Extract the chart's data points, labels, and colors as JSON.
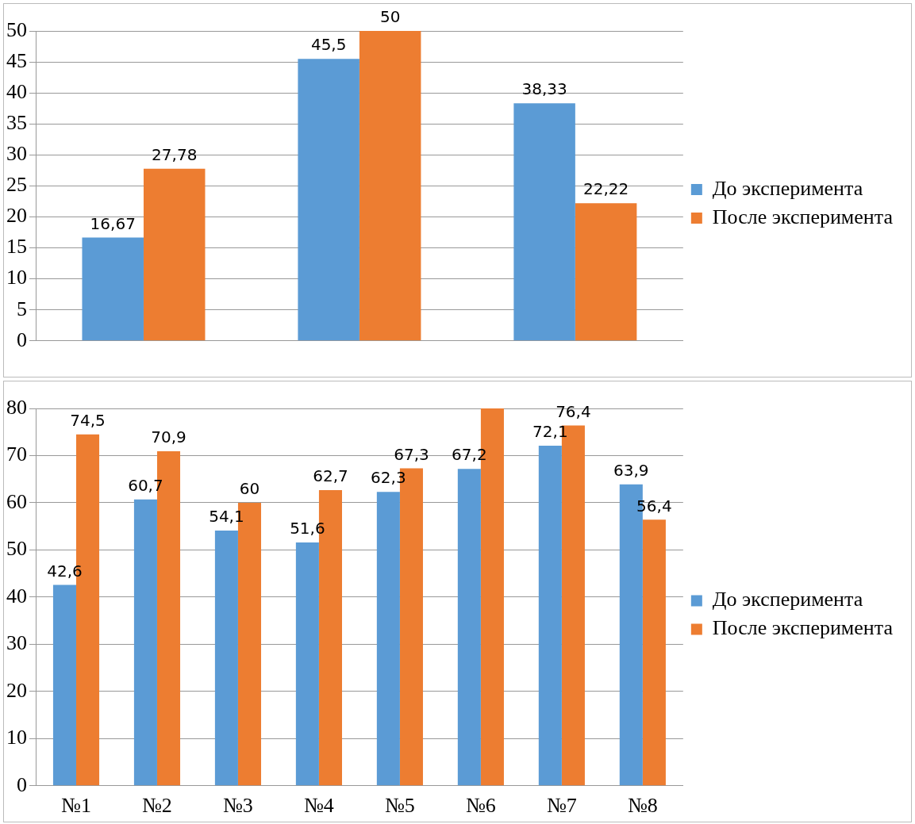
{
  "chart_data": [
    {
      "type": "bar",
      "categories": [
        null,
        null,
        null
      ],
      "series": [
        {
          "name": "До эксперимента",
          "color": "#5b9bd5",
          "values": [
            16.67,
            45.5,
            38.33
          ],
          "value_labels": [
            "16,67",
            "45,5",
            "38,33"
          ]
        },
        {
          "name": "После эксперимента",
          "color": "#ed7d31",
          "values": [
            27.78,
            50,
            22.22
          ],
          "value_labels": [
            "27,78",
            "50",
            "22,22"
          ]
        }
      ],
      "ylim": [
        0,
        50
      ],
      "yticks": [
        0,
        5,
        10,
        15,
        20,
        25,
        30,
        35,
        40,
        45,
        50
      ],
      "grid": "y",
      "legend": "right"
    },
    {
      "type": "bar",
      "categories": [
        "№1",
        "№2",
        "№3",
        "№4",
        "№5",
        "№6",
        "№7",
        "№8"
      ],
      "series": [
        {
          "name": "До эксперимента",
          "color": "#5b9bd5",
          "values": [
            42.6,
            60.7,
            54.1,
            51.6,
            62.3,
            67.2,
            72.1,
            63.9
          ],
          "value_labels": [
            "42,6",
            "60,7",
            "54,1",
            "51,6",
            "62,3",
            "67,2",
            "72,1",
            "63,9"
          ]
        },
        {
          "name": "После эксперимента",
          "color": "#ed7d31",
          "values": [
            74.5,
            70.9,
            60,
            62.7,
            67.3,
            80,
            76.4,
            56.4
          ],
          "value_labels": [
            "74,5",
            "70,9",
            "60",
            "62,7",
            "67,3",
            null,
            "76,4",
            "56,4"
          ]
        }
      ],
      "ylim": [
        0,
        80
      ],
      "yticks": [
        0,
        10,
        20,
        30,
        40,
        50,
        60,
        70,
        80
      ],
      "grid": "y",
      "legend": "right"
    }
  ]
}
